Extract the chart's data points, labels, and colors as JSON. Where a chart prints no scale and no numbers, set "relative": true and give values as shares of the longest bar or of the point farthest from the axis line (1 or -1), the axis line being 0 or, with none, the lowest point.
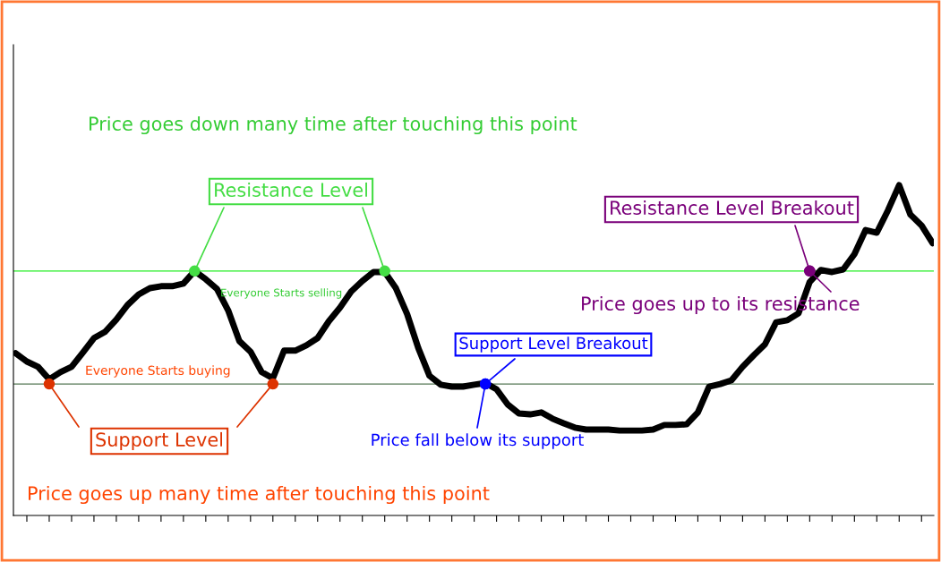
{
  "chart_data": {
    "type": "line",
    "relative": true,
    "categories": [
      null,
      null,
      null,
      null,
      null,
      null,
      null,
      null,
      null,
      null,
      null,
      null,
      null,
      null,
      null,
      null,
      null,
      null,
      null,
      null,
      null,
      null,
      null,
      null,
      null,
      null,
      null,
      null,
      null,
      null,
      null,
      null,
      null,
      null,
      null,
      null,
      null,
      null,
      null,
      null,
      null,
      null,
      null,
      null,
      null,
      null,
      null,
      null,
      null,
      null,
      null,
      null,
      null,
      null,
      null,
      null,
      null,
      null,
      null,
      null,
      null,
      null,
      null,
      null,
      null,
      null,
      null,
      null,
      null,
      null,
      null,
      null,
      null,
      null,
      null,
      null,
      null,
      null,
      null,
      null,
      null,
      null,
      null
    ],
    "series": [
      {
        "color": "#000000",
        "values": [
          0.491,
          0.466,
          0.45,
          0.412,
          0.434,
          0.45,
          0.493,
          0.537,
          0.556,
          0.593,
          0.637,
          0.669,
          0.688,
          0.694,
          0.694,
          0.702,
          0.74,
          0.715,
          0.686,
          0.621,
          0.528,
          0.496,
          0.434,
          0.415,
          0.499,
          0.499,
          0.515,
          0.537,
          0.588,
          0.629,
          0.678,
          0.71,
          0.737,
          0.737,
          0.688,
          0.61,
          0.507,
          0.423,
          0.396,
          0.39,
          0.39,
          0.396,
          0.401,
          0.382,
          0.336,
          0.309,
          0.306,
          0.312,
          0.293,
          0.279,
          0.266,
          0.26,
          0.26,
          0.26,
          0.257,
          0.257,
          0.257,
          0.26,
          0.274,
          0.274,
          0.276,
          0.312,
          0.39,
          0.398,
          0.409,
          0.45,
          0.485,
          0.518,
          0.585,
          0.591,
          0.612,
          0.707,
          0.743,
          0.737,
          0.745,
          0.791,
          0.864,
          0.856,
          0.924,
          1.0,
          0.911,
          0.878,
          0.824
        ]
      }
    ],
    "ref_lines": [
      {
        "axis": "y",
        "value": 0.74,
        "color": "#22ee22"
      },
      {
        "axis": "y",
        "value": 0.398,
        "color": "#557755"
      }
    ],
    "annotations": [
      "Price goes down many time after touching this point",
      "Resistance Level",
      "Everyone Starts selling",
      "Everyone Starts buying",
      "Support Level",
      "Price goes up many time after touching this point",
      "Support Level Breakout",
      "Price fall below its support",
      "Resistance Level Breakout",
      "Price goes up to its resistance"
    ],
    "grid": false,
    "legend": false
  }
}
